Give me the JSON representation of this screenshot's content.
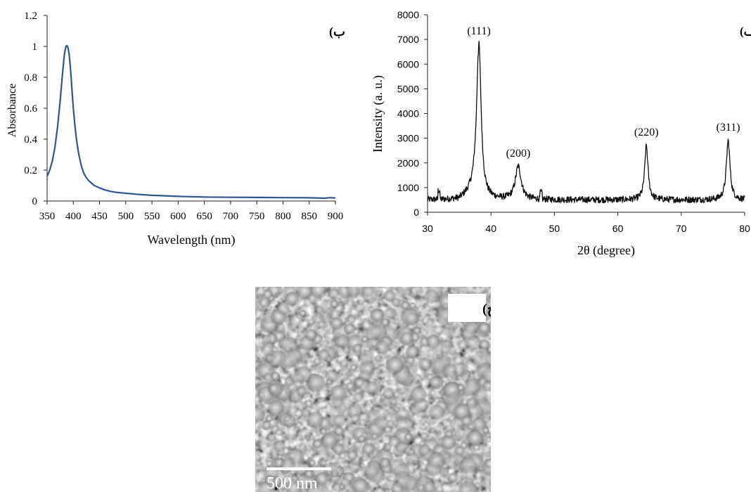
{
  "panels": {
    "uv": {
      "label": "ب)",
      "chart_data": {
        "type": "line",
        "xlabel": "Wavelength (nm)",
        "ylabel": "Absorbance",
        "xlim": [
          350,
          900
        ],
        "ylim": [
          0,
          1.2
        ],
        "xticks": [
          350,
          400,
          450,
          500,
          550,
          600,
          650,
          700,
          750,
          800,
          850,
          900
        ],
        "yticks": [
          0,
          0.2,
          0.4,
          0.6,
          0.8,
          1,
          1.2
        ],
        "line_color": "#2f5597",
        "series": [
          {
            "x": [
              350,
              355,
              360,
              365,
              370,
              375,
              380,
              383,
              386,
              388,
              390,
              392,
              394,
              396,
              398,
              400,
              403,
              406,
              410,
              415,
              420,
              425,
              430,
              440,
              450,
              460,
              470,
              480,
              500,
              520,
              550,
              600,
              650,
              700,
              750,
              800,
              850,
              880,
              890,
              900
            ],
            "y": [
              0.16,
              0.2,
              0.26,
              0.35,
              0.48,
              0.65,
              0.85,
              0.95,
              1.0,
              1.005,
              0.99,
              0.95,
              0.88,
              0.79,
              0.69,
              0.6,
              0.49,
              0.4,
              0.31,
              0.23,
              0.18,
              0.15,
              0.13,
              0.1,
              0.085,
              0.072,
              0.063,
              0.057,
              0.05,
              0.044,
              0.037,
              0.03,
              0.026,
              0.024,
              0.023,
              0.022,
              0.021,
              0.018,
              0.022,
              0.02
            ]
          }
        ]
      }
    },
    "xrd": {
      "label": "الف)",
      "chart_data": {
        "type": "line",
        "xlabel": "2θ (degree)",
        "ylabel": "Intensity (a. u.)",
        "xlim": [
          30,
          80
        ],
        "ylim": [
          0,
          8000
        ],
        "xticks": [
          30,
          40,
          50,
          60,
          70,
          80
        ],
        "yticks": [
          0,
          1000,
          2000,
          3000,
          4000,
          5000,
          6000,
          7000,
          8000
        ],
        "line_color": "#111111",
        "baseline": 500,
        "peaks": [
          {
            "x": 38.1,
            "y": 6800,
            "label": "(111)"
          },
          {
            "x": 44.3,
            "y": 1850,
            "label": "(200)"
          },
          {
            "x": 64.5,
            "y": 2700,
            "label": "(220)"
          },
          {
            "x": 77.4,
            "y": 2900,
            "label": "(311)"
          }
        ]
      }
    },
    "sem": {
      "label": "ج)",
      "scale_bar": "500 nm"
    }
  }
}
